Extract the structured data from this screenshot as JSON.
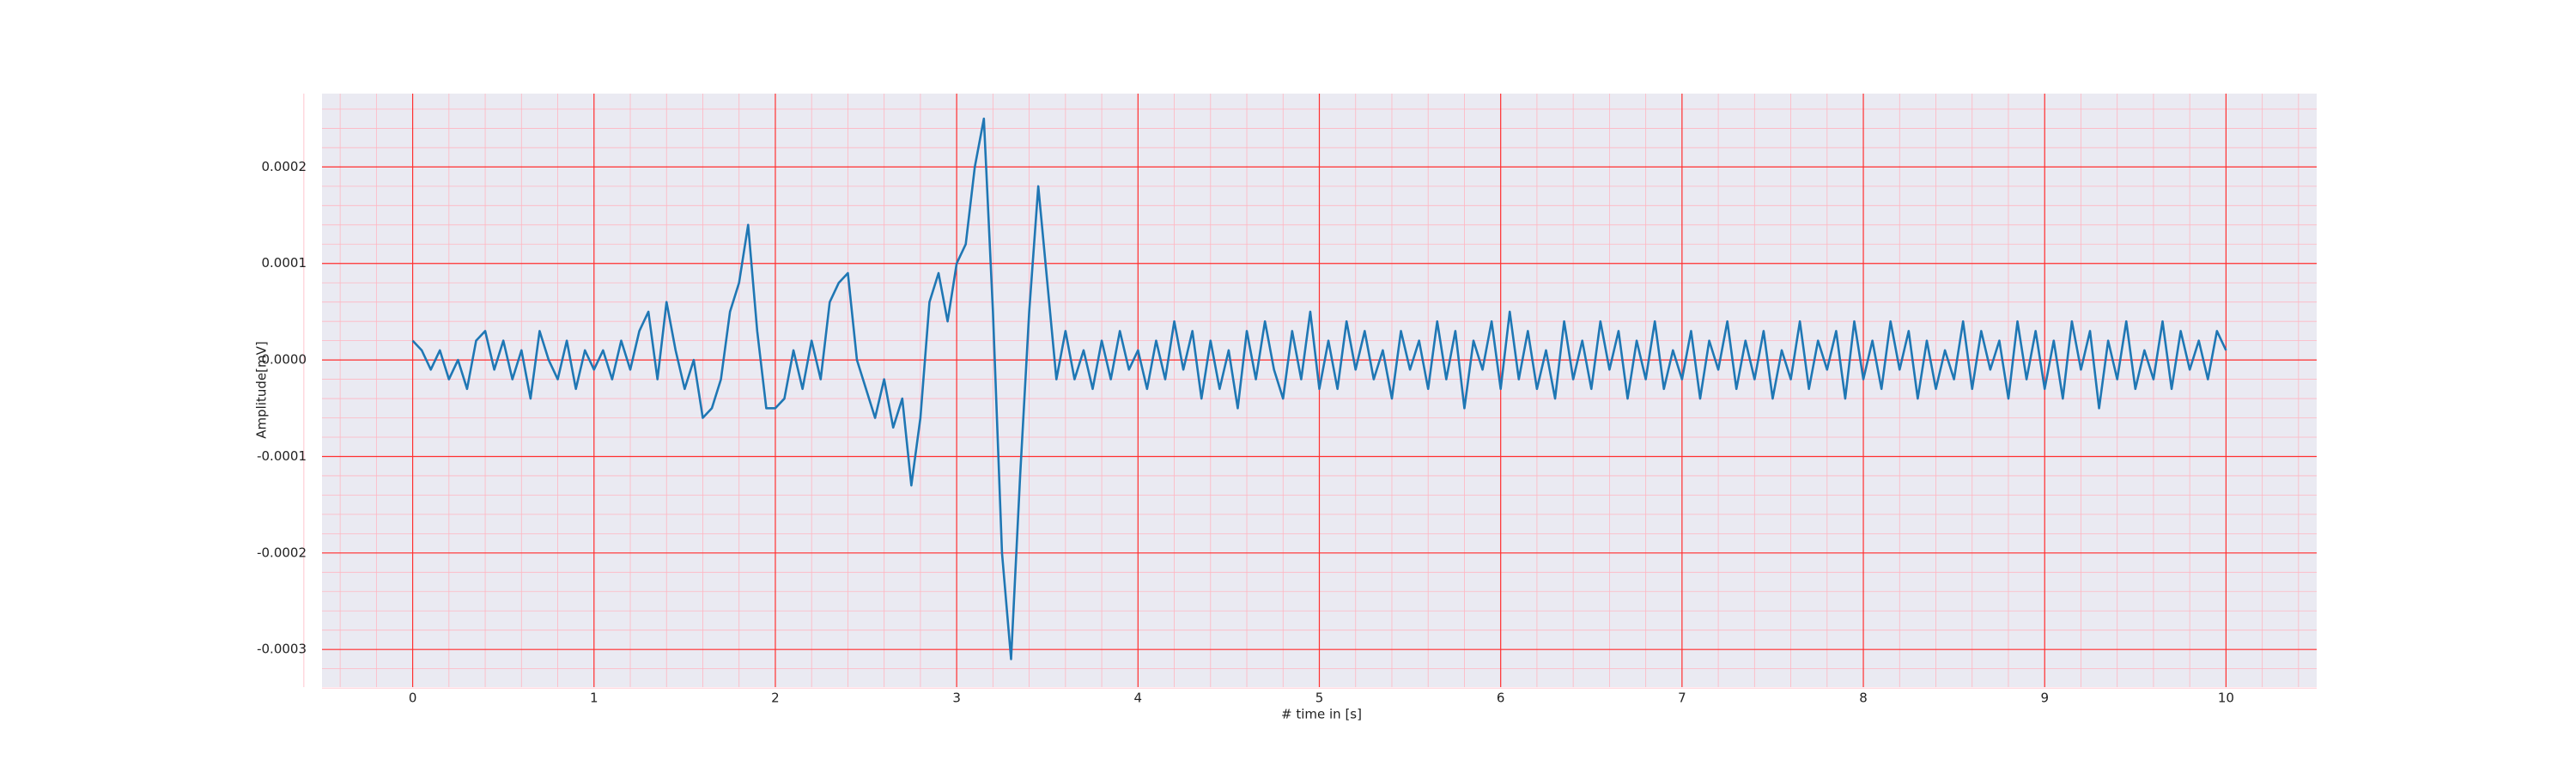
{
  "chart_data": {
    "type": "line",
    "xlabel": "# time in [s]",
    "ylabel": "Amplitude[mV]",
    "xlim": [
      -0.5,
      10.5
    ],
    "ylim": [
      -0.000339,
      0.000276
    ],
    "xticks": [
      0,
      1,
      2,
      3,
      4,
      5,
      6,
      7,
      8,
      9,
      10
    ],
    "yticks": [
      {
        "value": -0.0003,
        "label": "-0.0003"
      },
      {
        "value": -0.0002,
        "label": "-0.0002"
      },
      {
        "value": -0.0001,
        "label": "-0.0001"
      },
      {
        "value": 0,
        "label": "0.0000"
      },
      {
        "value": 0.0001,
        "label": "0.0001"
      },
      {
        "value": 0.0002,
        "label": "0.0002"
      }
    ],
    "grid": true,
    "minor_divisions": 5,
    "series": [
      {
        "color": "#1f77b4",
        "x": [
          0,
          0.05,
          0.1,
          0.15,
          0.2,
          0.25,
          0.3,
          0.35,
          0.4,
          0.45,
          0.5,
          0.55,
          0.6,
          0.65,
          0.7,
          0.75,
          0.8,
          0.85,
          0.9,
          0.95,
          1,
          1.05,
          1.1,
          1.15,
          1.2,
          1.25,
          1.3,
          1.35,
          1.4,
          1.45,
          1.5,
          1.55,
          1.6,
          1.65,
          1.7,
          1.75,
          1.8,
          1.85,
          1.9,
          1.95,
          2,
          2.05,
          2.1,
          2.15,
          2.2,
          2.25,
          2.3,
          2.35,
          2.4,
          2.45,
          2.5,
          2.55,
          2.6,
          2.65,
          2.7,
          2.75,
          2.8,
          2.85,
          2.9,
          2.95,
          3,
          3.05,
          3.1,
          3.15,
          3.2,
          3.25,
          3.3,
          3.35,
          3.4,
          3.45,
          3.5,
          3.55,
          3.6,
          3.65,
          3.7,
          3.75,
          3.8,
          3.85,
          3.9,
          3.95,
          4,
          4.05,
          4.1,
          4.15,
          4.2,
          4.25,
          4.3,
          4.35,
          4.4,
          4.45,
          4.5,
          4.55,
          4.6,
          4.65,
          4.7,
          4.75,
          4.8,
          4.85,
          4.9,
          4.95,
          5,
          5.05,
          5.1,
          5.15,
          5.2,
          5.25,
          5.3,
          5.35,
          5.4,
          5.45,
          5.5,
          5.55,
          5.6,
          5.65,
          5.7,
          5.75,
          5.8,
          5.85,
          5.9,
          5.95,
          6,
          6.05,
          6.1,
          6.15,
          6.2,
          6.25,
          6.3,
          6.35,
          6.4,
          6.45,
          6.5,
          6.55,
          6.6,
          6.65,
          6.7,
          6.75,
          6.8,
          6.85,
          6.9,
          6.95,
          7,
          7.05,
          7.1,
          7.15,
          7.2,
          7.25,
          7.3,
          7.35,
          7.4,
          7.45,
          7.5,
          7.55,
          7.6,
          7.65,
          7.7,
          7.75,
          7.8,
          7.85,
          7.9,
          7.95,
          8,
          8.05,
          8.1,
          8.15,
          8.2,
          8.25,
          8.3,
          8.35,
          8.4,
          8.45,
          8.5,
          8.55,
          8.6,
          8.65,
          8.7,
          8.75,
          8.8,
          8.85,
          8.9,
          8.95,
          9,
          9.05,
          9.1,
          9.15,
          9.2,
          9.25,
          9.3,
          9.35,
          9.4,
          9.45,
          9.5,
          9.55,
          9.6,
          9.65,
          9.7,
          9.75,
          9.8,
          9.85,
          9.9,
          9.95,
          10
        ],
        "values": [
          2e-05,
          1e-05,
          -1e-05,
          1e-05,
          -2e-05,
          0,
          -3e-05,
          2e-05,
          3e-05,
          -1e-05,
          2e-05,
          -2e-05,
          1e-05,
          -4e-05,
          3e-05,
          0,
          -2e-05,
          2e-05,
          -3e-05,
          1e-05,
          -1e-05,
          1e-05,
          -2e-05,
          2e-05,
          -1e-05,
          3e-05,
          5e-05,
          -2e-05,
          6e-05,
          1e-05,
          -3e-05,
          0,
          -6e-05,
          -5e-05,
          -2e-05,
          5e-05,
          8e-05,
          0.00014,
          3e-05,
          -5e-05,
          -5e-05,
          -4e-05,
          1e-05,
          -3e-05,
          2e-05,
          -2e-05,
          6e-05,
          8e-05,
          9e-05,
          0,
          -3e-05,
          -6e-05,
          -2e-05,
          -7e-05,
          -4e-05,
          -0.00013,
          -6e-05,
          6e-05,
          9e-05,
          4e-05,
          0.0001,
          0.00012,
          0.0002,
          0.00025,
          5e-05,
          -0.0002,
          -0.00031,
          -0.00012,
          5e-05,
          0.00018,
          8e-05,
          -2e-05,
          3e-05,
          -2e-05,
          1e-05,
          -3e-05,
          2e-05,
          -2e-05,
          3e-05,
          -1e-05,
          1e-05,
          -3e-05,
          2e-05,
          -2e-05,
          4e-05,
          -1e-05,
          3e-05,
          -4e-05,
          2e-05,
          -3e-05,
          1e-05,
          -5e-05,
          3e-05,
          -2e-05,
          4e-05,
          -1e-05,
          -4e-05,
          3e-05,
          -2e-05,
          5e-05,
          -3e-05,
          2e-05,
          -3e-05,
          4e-05,
          -1e-05,
          3e-05,
          -2e-05,
          1e-05,
          -4e-05,
          3e-05,
          -1e-05,
          2e-05,
          -3e-05,
          4e-05,
          -2e-05,
          3e-05,
          -5e-05,
          2e-05,
          -1e-05,
          4e-05,
          -3e-05,
          5e-05,
          -2e-05,
          3e-05,
          -3e-05,
          1e-05,
          -4e-05,
          4e-05,
          -2e-05,
          2e-05,
          -3e-05,
          4e-05,
          -1e-05,
          3e-05,
          -4e-05,
          2e-05,
          -2e-05,
          4e-05,
          -3e-05,
          1e-05,
          -2e-05,
          3e-05,
          -4e-05,
          2e-05,
          -1e-05,
          4e-05,
          -3e-05,
          2e-05,
          -2e-05,
          3e-05,
          -4e-05,
          1e-05,
          -2e-05,
          4e-05,
          -3e-05,
          2e-05,
          -1e-05,
          3e-05,
          -4e-05,
          4e-05,
          -2e-05,
          2e-05,
          -3e-05,
          4e-05,
          -1e-05,
          3e-05,
          -4e-05,
          2e-05,
          -3e-05,
          1e-05,
          -2e-05,
          4e-05,
          -3e-05,
          3e-05,
          -1e-05,
          2e-05,
          -4e-05,
          4e-05,
          -2e-05,
          3e-05,
          -3e-05,
          2e-05,
          -4e-05,
          4e-05,
          -1e-05,
          3e-05,
          -5e-05,
          2e-05,
          -2e-05,
          4e-05,
          -3e-05,
          1e-05,
          -2e-05,
          4e-05,
          -3e-05,
          3e-05,
          -1e-05,
          2e-05,
          -2e-05,
          3e-05,
          1e-05
        ]
      }
    ]
  }
}
